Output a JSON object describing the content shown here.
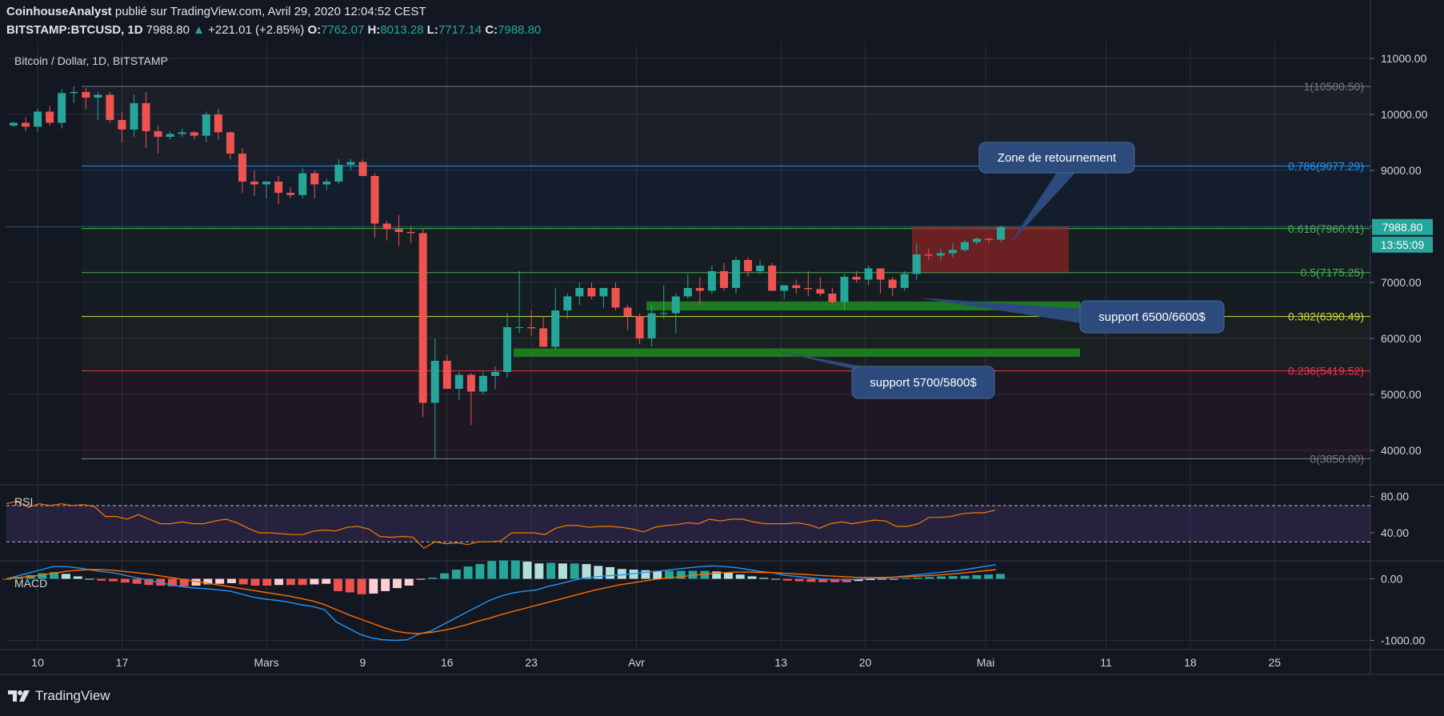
{
  "header": {
    "author": "CoinhouseAnalyst",
    "published_text": "publié sur TradingView.com, Avril 29, 2020 12:04:52 CEST",
    "symbol": "BITSTAMP:BTCUSD, 1D",
    "last": "7988.80",
    "change": "+221.01 (+2.85%)",
    "o_label": "O:",
    "o": "7762.07",
    "h_label": "H:",
    "h": "8013.28",
    "l_label": "L:",
    "l": "7717.14",
    "c_label": "C:",
    "c": "7988.80"
  },
  "chart_data": {
    "type": "candlestick",
    "title": "Bitcoin / Dollar, 1D, BITSTAMP",
    "price_axis": {
      "min": 3400,
      "max": 11300,
      "ticks": [
        "4000.00",
        "5000.00",
        "6000.00",
        "7000.00",
        "8000.00",
        "9000.00",
        "10000.00",
        "11000.00"
      ]
    },
    "last_price_label": "7988.80",
    "countdown_label": "13:55:09",
    "x_ticks": [
      "10",
      "17",
      "Mars",
      "9",
      "16",
      "23",
      "Avr",
      "13",
      "20",
      "Mai",
      "11",
      "18",
      "25"
    ],
    "candles": [
      [
        9800,
        9870,
        9780,
        9850
      ],
      [
        9850,
        9950,
        9700,
        9780
      ],
      [
        9780,
        10100,
        9690,
        10050
      ],
      [
        10050,
        10150,
        9800,
        9850
      ],
      [
        9850,
        10450,
        9750,
        10380
      ],
      [
        10380,
        10500,
        10200,
        10400
      ],
      [
        10400,
        10470,
        10100,
        10300
      ],
      [
        10300,
        10400,
        9900,
        10350
      ],
      [
        10350,
        10400,
        9850,
        9900
      ],
      [
        9900,
        10050,
        9500,
        9730
      ],
      [
        9730,
        10350,
        9600,
        10200
      ],
      [
        10200,
        10400,
        9400,
        9700
      ],
      [
        9700,
        9800,
        9300,
        9600
      ],
      [
        9600,
        9700,
        9550,
        9650
      ],
      [
        9650,
        9750,
        9600,
        9680
      ],
      [
        9680,
        9700,
        9550,
        9620
      ],
      [
        9620,
        10050,
        9500,
        10000
      ],
      [
        10000,
        10100,
        9550,
        9680
      ],
      [
        9680,
        9700,
        9200,
        9300
      ],
      [
        9300,
        9400,
        8600,
        8800
      ],
      [
        8800,
        9000,
        8550,
        8750
      ],
      [
        8750,
        8800,
        8500,
        8800
      ],
      [
        8800,
        8900,
        8400,
        8600
      ],
      [
        8600,
        8700,
        8500,
        8560
      ],
      [
        8560,
        9050,
        8500,
        8950
      ],
      [
        8950,
        9000,
        8500,
        8750
      ],
      [
        8750,
        8850,
        8650,
        8800
      ],
      [
        8800,
        9200,
        8750,
        9100
      ],
      [
        9100,
        9200,
        9000,
        9150
      ],
      [
        9150,
        9200,
        8900,
        8900
      ],
      [
        8900,
        8950,
        7800,
        8050
      ],
      [
        8050,
        8100,
        7750,
        7950
      ],
      [
        7950,
        8200,
        7650,
        7900
      ],
      [
        7900,
        8000,
        7700,
        7880
      ],
      [
        7880,
        7950,
        4600,
        4850
      ],
      [
        4850,
        6000,
        3850,
        5600
      ],
      [
        5600,
        5700,
        5100,
        5100
      ],
      [
        5100,
        5400,
        4900,
        5350
      ],
      [
        5350,
        5380,
        4450,
        5050
      ],
      [
        5050,
        5400,
        5000,
        5330
      ],
      [
        5330,
        5500,
        5100,
        5400
      ],
      [
        5400,
        6450,
        5300,
        6200
      ],
      [
        6200,
        7200,
        6100,
        6200
      ],
      [
        6200,
        6500,
        6050,
        6180
      ],
      [
        6180,
        6400,
        5900,
        5850
      ],
      [
        5850,
        6900,
        5800,
        6500
      ],
      [
        6500,
        6800,
        6350,
        6750
      ],
      [
        6750,
        7000,
        6600,
        6900
      ],
      [
        6900,
        7000,
        6700,
        6750
      ],
      [
        6750,
        6850,
        6550,
        6900
      ],
      [
        6900,
        7000,
        6500,
        6550
      ],
      [
        6550,
        6600,
        6150,
        6400
      ],
      [
        6400,
        6450,
        5900,
        6000
      ],
      [
        6000,
        6600,
        5850,
        6450
      ],
      [
        6450,
        6950,
        6350,
        6450
      ],
      [
        6450,
        6800,
        6100,
        6750
      ],
      [
        6750,
        7150,
        6700,
        6900
      ],
      [
        6900,
        7100,
        6600,
        6850
      ],
      [
        6850,
        7300,
        6800,
        7200
      ],
      [
        7200,
        7350,
        6850,
        6900
      ],
      [
        6900,
        7450,
        6800,
        7400
      ],
      [
        7400,
        7450,
        7100,
        7200
      ],
      [
        7200,
        7400,
        7150,
        7300
      ],
      [
        7300,
        7350,
        6900,
        6850
      ],
      [
        6850,
        6950,
        6700,
        6950
      ],
      [
        6950,
        7050,
        6800,
        6900
      ],
      [
        6900,
        7200,
        6750,
        6880
      ],
      [
        6880,
        7100,
        6750,
        6800
      ],
      [
        6800,
        6900,
        6600,
        6650
      ],
      [
        6650,
        7150,
        6500,
        7100
      ],
      [
        7100,
        7200,
        7000,
        7050
      ],
      [
        7050,
        7300,
        6950,
        7250
      ],
      [
        7250,
        7250,
        6800,
        7050
      ],
      [
        7050,
        7100,
        6750,
        6900
      ],
      [
        6900,
        7200,
        6850,
        7150
      ],
      [
        7150,
        7700,
        7050,
        7500
      ],
      [
        7500,
        7600,
        7400,
        7480
      ],
      [
        7480,
        7600,
        7400,
        7520
      ],
      [
        7520,
        7700,
        7450,
        7580
      ],
      [
        7580,
        7750,
        7550,
        7720
      ],
      [
        7720,
        7800,
        7680,
        7780
      ],
      [
        7780,
        7800,
        7700,
        7760
      ],
      [
        7762.07,
        8013.28,
        7717.14,
        7988.8
      ]
    ],
    "fib_levels": [
      {
        "label": "1(10500.50)",
        "value": 10500.5,
        "color": "#787b86"
      },
      {
        "label": "0.786(9077.29)",
        "value": 9077.29,
        "color": "#2196f3"
      },
      {
        "label": "0.618(7960.01)",
        "value": 7960.01,
        "color": "#4caf50"
      },
      {
        "label": "0.5(7175.25)",
        "value": 7175.25,
        "color": "#4caf50"
      },
      {
        "label": "0.382(6390.49)",
        "value": 6390.49,
        "color": "#cddc39"
      },
      {
        "label": "0.236(5419.52)",
        "value": 5419.52,
        "color": "#f23645"
      },
      {
        "label": "0(3850.00)",
        "value": 3850.0,
        "color": "#787b86"
      }
    ],
    "annotations": [
      {
        "text": "Zone de retournement"
      },
      {
        "text": "support 6500/6600$"
      },
      {
        "text": "support 5700/5800$"
      }
    ],
    "rsi": {
      "label": "RSI",
      "ticks": [
        "80.00",
        "40.00"
      ],
      "values": [
        72,
        75,
        68,
        72,
        70,
        72,
        70,
        71,
        69,
        58,
        58,
        55,
        60,
        55,
        50,
        50,
        52,
        50,
        50,
        53,
        55,
        51,
        45,
        40,
        40,
        39,
        38,
        38,
        42,
        43,
        42,
        46,
        47,
        44,
        36,
        35,
        36,
        35,
        23,
        30,
        28,
        29,
        27,
        30,
        30,
        31,
        40,
        40,
        40,
        38,
        45,
        48,
        48,
        46,
        47,
        47,
        46,
        44,
        41,
        46,
        48,
        49,
        51,
        50,
        55,
        53,
        55,
        55,
        52,
        50,
        50,
        50,
        51,
        49,
        45,
        50,
        52,
        50,
        52,
        54,
        53,
        47,
        47,
        50,
        57,
        57,
        58,
        61,
        62,
        62,
        65
      ]
    },
    "macd": {
      "label": "MACD",
      "ticks": [
        "0.00",
        "-1000.00"
      ],
      "macd_line": [
        0,
        50,
        100,
        150,
        200,
        200,
        180,
        150,
        120,
        100,
        60,
        20,
        -20,
        -60,
        -100,
        -130,
        -150,
        -160,
        -180,
        -200,
        -250,
        -300,
        -330,
        -350,
        -380,
        -420,
        -450,
        -500,
        -700,
        -800,
        -900,
        -960,
        -990,
        -1000,
        -990,
        -900,
        -850,
        -750,
        -650,
        -550,
        -450,
        -350,
        -280,
        -230,
        -200,
        -180,
        -120,
        -80,
        -30,
        10,
        30,
        50,
        60,
        80,
        100,
        120,
        140,
        160,
        180,
        200,
        210,
        200,
        180,
        150,
        120,
        100,
        60,
        40,
        20,
        0,
        -10,
        -20,
        -10,
        0,
        10,
        20,
        40,
        60,
        80,
        100,
        120,
        140,
        170,
        200,
        230
      ],
      "signal_line": [
        0,
        20,
        40,
        60,
        90,
        120,
        140,
        150,
        150,
        140,
        120,
        100,
        80,
        50,
        20,
        -10,
        -40,
        -70,
        -100,
        -130,
        -160,
        -190,
        -220,
        -250,
        -280,
        -320,
        -360,
        -420,
        -500,
        -580,
        -650,
        -720,
        -790,
        -850,
        -880,
        -890,
        -870,
        -840,
        -800,
        -750,
        -690,
        -640,
        -580,
        -530,
        -480,
        -430,
        -380,
        -330,
        -280,
        -230,
        -180,
        -140,
        -100,
        -70,
        -40,
        -10,
        10,
        30,
        50,
        70,
        90,
        100,
        110,
        110,
        105,
        100,
        90,
        80,
        70,
        55,
        45,
        35,
        25,
        20,
        20,
        25,
        30,
        40,
        50,
        60,
        75,
        90,
        110,
        130,
        150
      ],
      "histogram": [
        0,
        30,
        60,
        90,
        110,
        80,
        40,
        0,
        -30,
        -40,
        -60,
        -80,
        -100,
        -110,
        -120,
        -120,
        -110,
        -90,
        -80,
        -70,
        -90,
        -110,
        -110,
        -100,
        -100,
        -100,
        -90,
        -80,
        -200,
        -220,
        -250,
        -240,
        -200,
        -150,
        -110,
        -10,
        20,
        90,
        150,
        200,
        240,
        290,
        300,
        300,
        280,
        250,
        260,
        250,
        250,
        240,
        210,
        190,
        160,
        150,
        140,
        130,
        130,
        130,
        130,
        130,
        120,
        100,
        70,
        40,
        15,
        0,
        -30,
        -40,
        -50,
        -55,
        -55,
        -55,
        -35,
        -20,
        -10,
        -5,
        10,
        20,
        30,
        40,
        45,
        50,
        60,
        70,
        80
      ]
    }
  },
  "footer": {
    "brand": "TradingView"
  }
}
